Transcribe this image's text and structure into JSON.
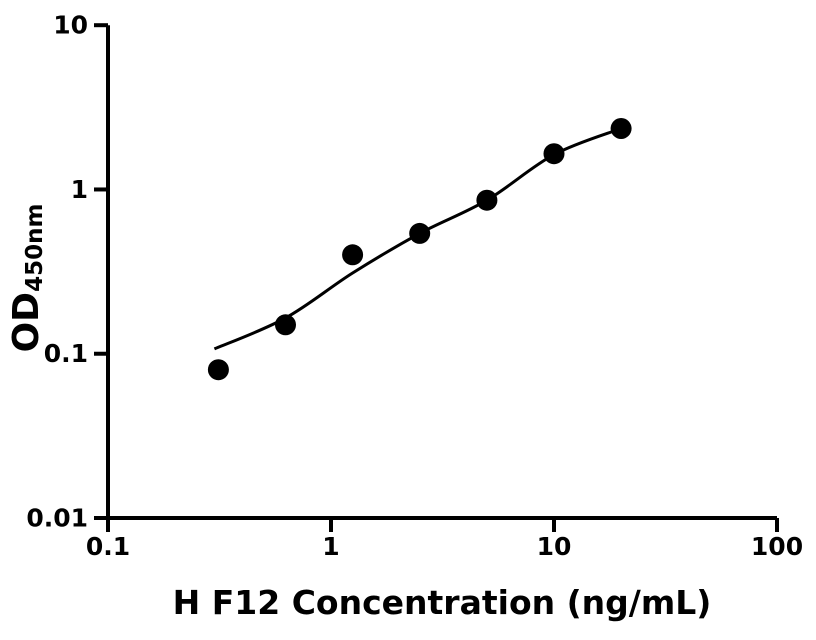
{
  "chart_data": {
    "type": "scatter",
    "title": "",
    "xlabel": "H F12 Concentration (ng/mL)",
    "ylabel_main": "OD",
    "ylabel_sub": "450nm",
    "x_scale": "log",
    "y_scale": "log",
    "xlim": [
      0.1,
      100
    ],
    "ylim": [
      0.01,
      10
    ],
    "grid": false,
    "legend": false,
    "background_color": "#ffffff",
    "axis_color": "#000000",
    "marker_color": "#000000",
    "curve_color": "#000000",
    "x_ticks": [
      {
        "value": 0.1,
        "label": "0.1"
      },
      {
        "value": 1,
        "label": "1"
      },
      {
        "value": 10,
        "label": "10"
      },
      {
        "value": 100,
        "label": "100"
      }
    ],
    "y_ticks": [
      {
        "value": 0.01,
        "label": "0.01"
      },
      {
        "value": 0.1,
        "label": "0.1"
      },
      {
        "value": 1,
        "label": "1"
      },
      {
        "value": 10,
        "label": "10"
      }
    ],
    "series": [
      {
        "name": "standard-points",
        "type": "scatter",
        "marker": "circle",
        "color": "#000000",
        "points": [
          {
            "x": 0.3125,
            "y": 0.08
          },
          {
            "x": 0.625,
            "y": 0.15
          },
          {
            "x": 1.25,
            "y": 0.4
          },
          {
            "x": 2.5,
            "y": 0.54
          },
          {
            "x": 5,
            "y": 0.86
          },
          {
            "x": 10,
            "y": 1.65
          },
          {
            "x": 20,
            "y": 2.35
          }
        ]
      },
      {
        "name": "fit-curve",
        "type": "line",
        "color": "#000000",
        "points": [
          {
            "x": 0.3,
            "y": 0.107
          },
          {
            "x": 0.625,
            "y": 0.165
          },
          {
            "x": 1.25,
            "y": 0.31
          },
          {
            "x": 2.5,
            "y": 0.54
          },
          {
            "x": 5,
            "y": 0.86
          },
          {
            "x": 10,
            "y": 1.63
          },
          {
            "x": 20,
            "y": 2.35
          }
        ]
      }
    ]
  }
}
